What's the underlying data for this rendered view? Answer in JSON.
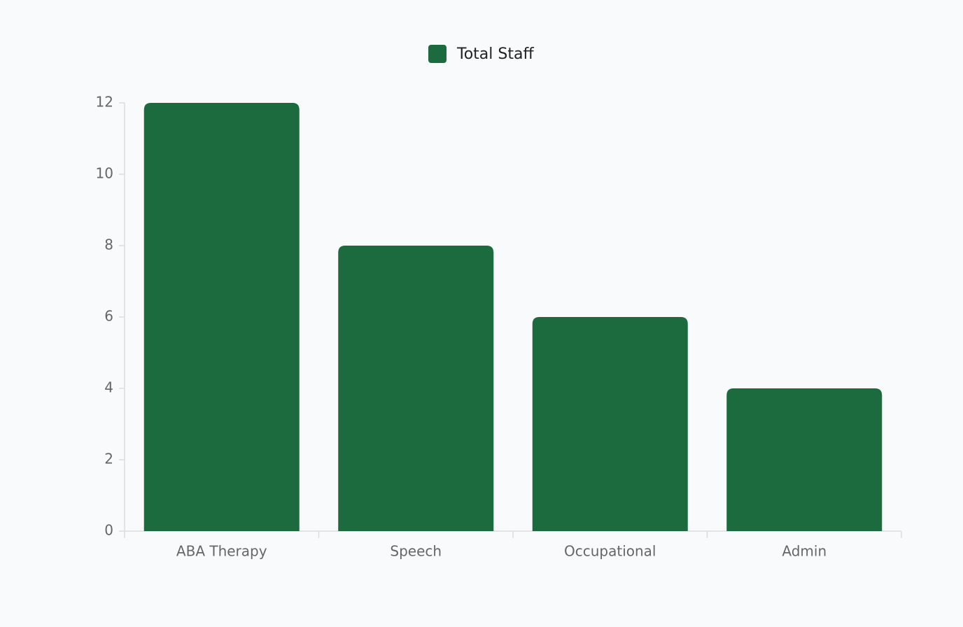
{
  "chart_data": {
    "type": "bar",
    "categories": [
      "ABA Therapy",
      "Speech",
      "Occupational",
      "Admin"
    ],
    "series": [
      {
        "name": "Total Staff",
        "color": "#1b6b3e",
        "values": [
          12,
          8,
          6,
          4
        ]
      }
    ],
    "ylim": [
      0,
      12
    ],
    "yticks": [
      0,
      2,
      4,
      6,
      8,
      10,
      12
    ],
    "grid": false,
    "legend": "top"
  }
}
